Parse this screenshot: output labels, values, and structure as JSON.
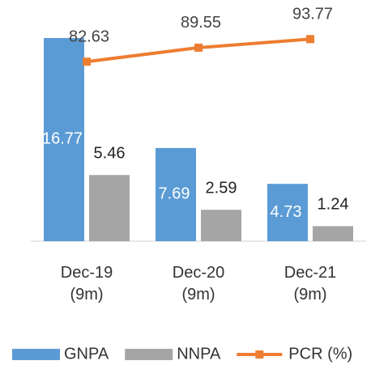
{
  "chart_data": {
    "type": "bar_line",
    "categories": [
      "Dec-19\n(9m)",
      "Dec-20\n(9m)",
      "Dec-21\n(9m)"
    ],
    "series": [
      {
        "name": "GNPA",
        "color": "#5b9bd5",
        "values": [
          16.77,
          7.69,
          4.73
        ]
      },
      {
        "name": "NNPA",
        "color": "#a5a5a5",
        "values": [
          5.46,
          2.59,
          1.24
        ]
      },
      {
        "name": "PCR (%)",
        "color": "#ed7d31",
        "values": [
          82.63,
          89.55,
          93.77
        ],
        "axis": "y2"
      }
    ],
    "ylim": [
      0,
      17.3
    ],
    "y2lim": [
      -6,
      97.5
    ],
    "legend": "bottom"
  }
}
